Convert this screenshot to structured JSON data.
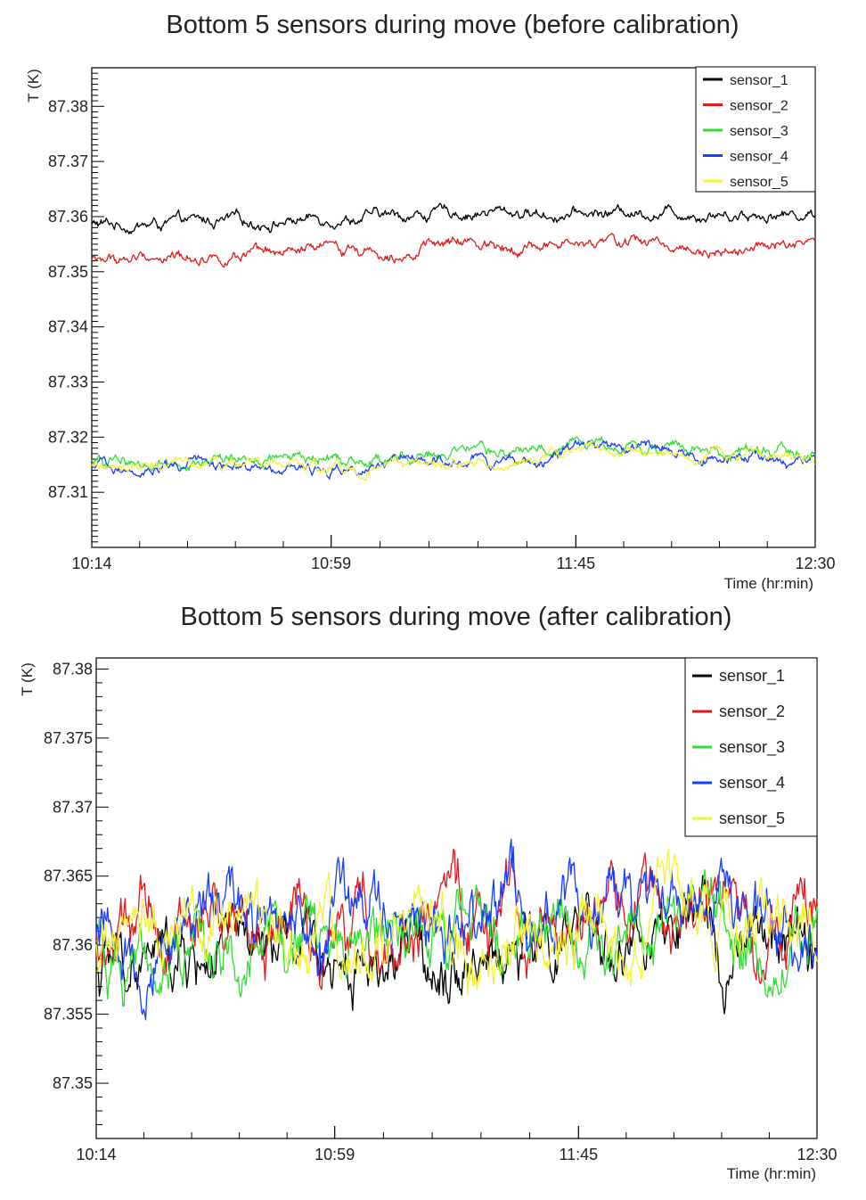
{
  "chart_data": [
    {
      "type": "line",
      "title": "Bottom 5 sensors during move (before calibration)",
      "xlabel": "Time (hr:min)",
      "ylabel": "T (K)",
      "x_tick_labels": [
        "10:14",
        "10:59",
        "11:45",
        "12:30"
      ],
      "y_tick_labels": [
        "87.38",
        "87.37",
        "87.36",
        "87.35",
        "87.34",
        "87.33",
        "87.32",
        "87.31"
      ],
      "ylim": [
        87.3,
        87.387
      ],
      "legend_position": "top-right",
      "x": [
        "10:14",
        "10:25",
        "10:36",
        "10:47",
        "10:59",
        "11:10",
        "11:22",
        "11:33",
        "11:45",
        "11:56",
        "12:07",
        "12:19",
        "12:30"
      ],
      "series": [
        {
          "name": "sensor_1",
          "color": "#000000",
          "values": [
            87.3585,
            87.3585,
            87.359,
            87.359,
            87.36,
            87.36,
            87.3608,
            87.3608,
            87.3603,
            87.361,
            87.3608,
            87.3605,
            87.3605
          ]
        },
        {
          "name": "sensor_2",
          "color": "#e31a1c",
          "values": [
            87.352,
            87.3525,
            87.353,
            87.3525,
            87.354,
            87.354,
            87.355,
            87.355,
            87.3545,
            87.3555,
            87.3545,
            87.3545,
            87.3545
          ]
        },
        {
          "name": "sensor_3",
          "color": "#33dd33",
          "values": [
            87.3155,
            87.3155,
            87.3158,
            87.316,
            87.316,
            87.3158,
            87.3168,
            87.3168,
            87.319,
            87.319,
            87.3175,
            87.3175,
            87.3172
          ]
        },
        {
          "name": "sensor_4",
          "color": "#1a3cff",
          "values": [
            87.3142,
            87.3145,
            87.3148,
            87.3152,
            87.3138,
            87.3145,
            87.3155,
            87.315,
            87.3178,
            87.3178,
            87.316,
            87.316,
            87.3162
          ]
        },
        {
          "name": "sensor_5",
          "color": "#f2f23a",
          "values": [
            87.3145,
            87.3145,
            87.315,
            87.315,
            87.3142,
            87.3145,
            87.3153,
            87.3152,
            87.3182,
            87.318,
            87.3165,
            87.3165,
            87.3165
          ]
        }
      ]
    },
    {
      "type": "line",
      "title": "Bottom 5 sensors during move (after calibration)",
      "xlabel": "Time (hr:min)",
      "ylabel": "T (K)",
      "x_tick_labels": [
        "10:14",
        "10:59",
        "11:45",
        "12:30"
      ],
      "y_tick_labels": [
        "87.38",
        "87.375",
        "87.37",
        "87.365",
        "87.36",
        "87.355",
        "87.35"
      ],
      "ylim": [
        87.346,
        87.3808
      ],
      "legend_position": "top-right",
      "x": [
        "10:14",
        "10:25",
        "10:36",
        "10:47",
        "10:59",
        "11:10",
        "11:22",
        "11:33",
        "11:45",
        "11:56",
        "12:07",
        "12:19",
        "12:30"
      ],
      "series": [
        {
          "name": "sensor_1",
          "color": "#000000",
          "values": [
            87.3582,
            87.3587,
            87.359,
            87.3588,
            87.3595,
            87.3592,
            87.3597,
            87.3595,
            87.3595,
            87.36,
            87.3598,
            87.3597,
            87.3597
          ]
        },
        {
          "name": "sensor_2",
          "color": "#e31a1c",
          "values": [
            87.36,
            87.3608,
            87.361,
            87.3612,
            87.3612,
            87.3605,
            87.3618,
            87.362,
            87.3622,
            87.3628,
            87.3622,
            87.362,
            87.362
          ]
        },
        {
          "name": "sensor_3",
          "color": "#33dd33",
          "values": [
            87.3595,
            87.3598,
            87.36,
            87.3603,
            87.3605,
            87.3595,
            87.3603,
            87.361,
            87.3612,
            87.3618,
            87.3612,
            87.361,
            87.361
          ]
        },
        {
          "name": "sensor_4",
          "color": "#1a3cff",
          "values": [
            87.36,
            87.361,
            87.3613,
            87.3617,
            87.3615,
            87.3607,
            87.362,
            87.3625,
            87.3628,
            87.3635,
            87.3625,
            87.3622,
            87.3622
          ]
        },
        {
          "name": "sensor_5",
          "color": "#f2f23a",
          "values": [
            87.3595,
            87.3598,
            87.3602,
            87.3605,
            87.3602,
            87.3595,
            87.3605,
            87.3612,
            87.3612,
            87.362,
            87.3615,
            87.3613,
            87.3613
          ]
        }
      ]
    }
  ]
}
